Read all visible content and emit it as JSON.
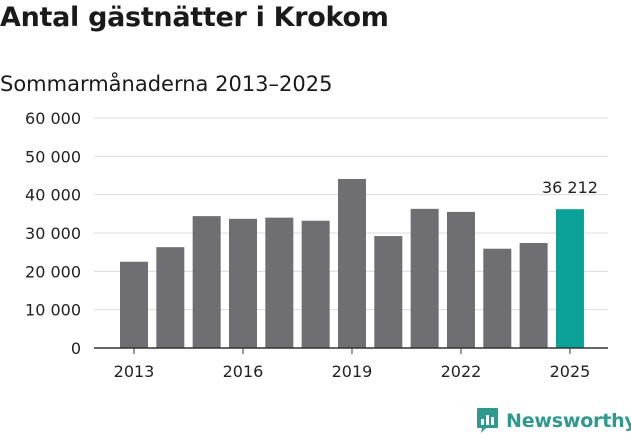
{
  "title": "Antal gästnätter i Krokom",
  "subtitle": "Sommarmånaderna 2013–2025",
  "brand": {
    "name": "Newsworthy",
    "icon": "newsworthy-logo-icon"
  },
  "colors": {
    "bar": "#6f6e73",
    "highlight": "#0aa198",
    "grid": "#dcdcdc",
    "axis": "#333333",
    "brand": "#2e9a8f"
  },
  "chart_data": {
    "type": "bar",
    "categories": [
      "2013",
      "2014",
      "2015",
      "2016",
      "2017",
      "2018",
      "2019",
      "2020",
      "2021",
      "2022",
      "2023",
      "2024",
      "2025"
    ],
    "values": [
      22500,
      26300,
      34400,
      33700,
      34000,
      33200,
      44100,
      29200,
      36300,
      35500,
      25900,
      27400,
      36212
    ],
    "highlight_index": 12,
    "data_labels": [
      {
        "index": 12,
        "text": "36 212"
      }
    ],
    "ylim": [
      0,
      60000
    ],
    "yticks": [
      {
        "value": 0,
        "label": "0"
      },
      {
        "value": 10000,
        "label": "10 000"
      },
      {
        "value": 20000,
        "label": "20 000"
      },
      {
        "value": 30000,
        "label": "30 000"
      },
      {
        "value": 40000,
        "label": "40 000"
      },
      {
        "value": 50000,
        "label": "50 000"
      },
      {
        "value": 60000,
        "label": "60 000"
      }
    ],
    "xticks": [
      {
        "index": 0,
        "label": "2013"
      },
      {
        "index": 3,
        "label": "2016"
      },
      {
        "index": 6,
        "label": "2019"
      },
      {
        "index": 9,
        "label": "2022"
      },
      {
        "index": 12,
        "label": "2025"
      }
    ],
    "grid": true,
    "xlabel": "",
    "ylabel": ""
  }
}
